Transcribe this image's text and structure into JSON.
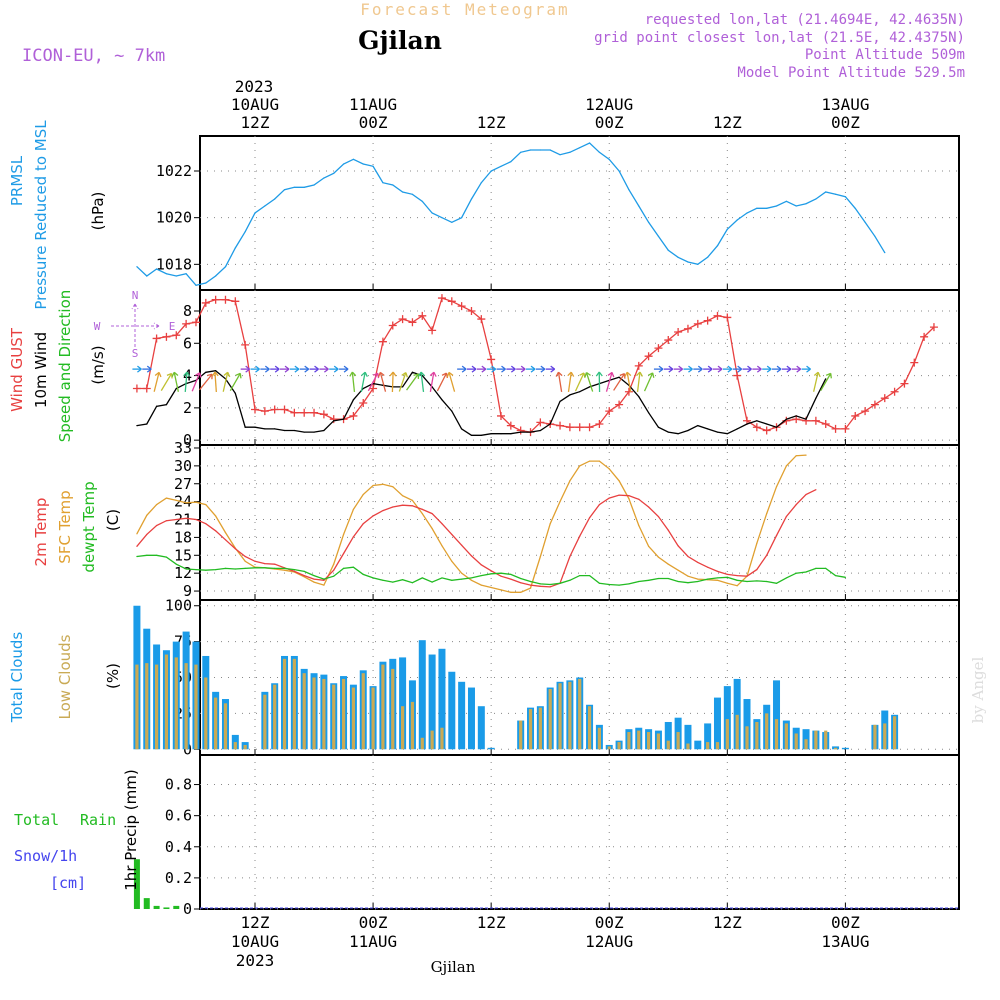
{
  "header": {
    "product": "Forecast Meteogram",
    "title": "Gjilan",
    "model": "ICON-EU, ~ 7km",
    "requested": "requested lon,lat (21.4694E, 42.4635N)",
    "grid_point": "grid point closest lon,lat (21.5E, 42.4375N)",
    "point_altitude": "Point Altitude 509m",
    "model_altitude": "Model Point Altitude 529.5m",
    "footer_location": "Gjilan",
    "watermark": "by Angel"
  },
  "time_axis": {
    "top_year": "2023",
    "ticks": [
      {
        "hour": 12,
        "l1": "10AUG",
        "l2": "12Z"
      },
      {
        "hour": 24,
        "l1": "11AUG",
        "l2": "00Z"
      },
      {
        "hour": 36,
        "l1": "",
        "l2": "12Z"
      },
      {
        "hour": 48,
        "l1": "12AUG",
        "l2": "00Z"
      },
      {
        "hour": 60,
        "l1": "",
        "l2": "12Z"
      },
      {
        "hour": 72,
        "l1": "13AUG",
        "l2": "00Z"
      }
    ],
    "bottom_ticks": [
      {
        "hour": 12,
        "l1": "12Z",
        "l2": "10AUG",
        "l3": "2023"
      },
      {
        "hour": 24,
        "l1": "00Z",
        "l2": "11AUG",
        "l3": ""
      },
      {
        "hour": 36,
        "l1": "12Z",
        "l2": "",
        "l3": ""
      },
      {
        "hour": 48,
        "l1": "00Z",
        "l2": "12AUG",
        "l3": ""
      },
      {
        "hour": 60,
        "l1": "12Z",
        "l2": "",
        "l3": ""
      },
      {
        "hour": 72,
        "l1": "00Z",
        "l2": "13AUG",
        "l3": ""
      }
    ]
  },
  "panel_labels": {
    "pressure": {
      "l1": "PRMSL",
      "l2": "Pressure Reduced to MSL",
      "unit": "(hPa)"
    },
    "wind": {
      "l1": "Wind GUST",
      "l2": "10m Wind",
      "l3": "Speed and Direction",
      "unit": "(m/s)"
    },
    "compass": {
      "n": "N",
      "s": "S",
      "w": "W",
      "e": "E"
    },
    "temp": {
      "l1": "2m Temp",
      "l2": "SFC Temp",
      "l3": "dewpt Temp",
      "unit": "(C)"
    },
    "clouds": {
      "l1": "Total Clouds",
      "l2": "Low Clouds",
      "unit": "(%)"
    },
    "precip": {
      "l1": "Total",
      "l2": "Rain",
      "l3": "Snow/1h",
      "l4": "[cm]",
      "unit": "1hr Precip (mm)"
    }
  },
  "colors": {
    "pressure": "#1e9be6",
    "gust": "#e84040",
    "wind": "#000000",
    "t2m": "#e84040",
    "sfc": "#e0a030",
    "dewpt": "#22bb22",
    "total_clouds": "#1a9be8",
    "low_clouds": "#c9aa55",
    "rain": "#22bb22",
    "label_purple": "#b060d8",
    "title_orange": "#f0c890",
    "snow_blue": "#4444ee"
  },
  "chart_data": [
    {
      "type": "line",
      "title": "PRMSL",
      "ylabel": "(hPa)",
      "yticks": [
        1018,
        1020,
        1022
      ],
      "ylim": [
        1016.9,
        1023.5
      ],
      "x_hours": [
        0,
        1,
        2,
        3,
        4,
        5,
        6,
        7,
        8,
        9,
        10,
        11,
        12,
        13,
        14,
        15,
        16,
        17,
        18,
        19,
        20,
        21,
        22,
        23,
        24,
        25,
        26,
        27,
        28,
        29,
        30,
        31,
        32,
        33,
        34,
        35,
        36,
        37,
        38,
        39,
        40,
        41,
        42,
        43,
        44,
        45,
        46,
        47,
        48,
        49,
        50,
        51,
        52,
        53,
        54,
        55,
        56,
        57,
        58,
        59,
        60,
        61,
        62,
        63,
        64,
        65,
        66,
        67,
        68,
        69,
        70,
        71,
        72,
        73,
        74,
        75,
        76,
        77,
        78,
        79,
        80,
        81
      ],
      "series": [
        {
          "name": "PRMSL",
          "values": [
            1017.9,
            1017.5,
            1017.8,
            1017.6,
            1017.5,
            1017.6,
            1017.1,
            1017.2,
            1017.5,
            1017.9,
            1018.7,
            1019.4,
            1020.2,
            1020.5,
            1020.8,
            1021.2,
            1021.3,
            1021.3,
            1021.4,
            1021.7,
            1021.9,
            1022.3,
            1022.5,
            1022.3,
            1022.2,
            1021.5,
            1021.4,
            1021.1,
            1021.0,
            1020.7,
            1020.2,
            1020.0,
            1019.8,
            1020.0,
            1020.8,
            1021.5,
            1022.0,
            1022.2,
            1022.4,
            1022.8,
            1022.9,
            1022.9,
            1022.9,
            1022.7,
            1022.8,
            1023.0,
            1023.2,
            1022.8,
            1022.5,
            1022.0,
            1021.2,
            1020.5,
            1019.8,
            1019.2,
            1018.6,
            1018.3,
            1018.1,
            1018.0,
            1018.3,
            1018.8,
            1019.5,
            1019.9,
            1020.2,
            1020.4,
            1020.4,
            1020.5,
            1020.7,
            1020.5,
            1020.6,
            1020.8,
            1021.1,
            1021.0,
            1020.9,
            1020.4,
            1019.8,
            1019.2,
            1018.5
          ]
        }
      ]
    },
    {
      "type": "line",
      "title": "Wind GUST / 10m Wind",
      "ylabel": "(m/s)",
      "yticks": [
        0,
        2,
        4,
        6,
        8
      ],
      "ylim": [
        -0.3,
        9.3
      ],
      "x_hours": [
        0,
        1,
        2,
        3,
        4,
        5,
        6,
        7,
        8,
        9,
        10,
        11,
        12,
        13,
        14,
        15,
        16,
        17,
        18,
        19,
        20,
        21,
        22,
        23,
        24,
        25,
        26,
        27,
        28,
        29,
        30,
        31,
        32,
        33,
        34,
        35,
        36,
        37,
        38,
        39,
        40,
        41,
        42,
        43,
        44,
        45,
        46,
        47,
        48,
        49,
        50,
        51,
        52,
        53,
        54,
        55,
        56,
        57,
        58,
        59,
        60,
        61,
        62,
        63,
        64,
        65,
        66,
        67,
        68,
        69,
        70,
        71,
        72,
        73,
        74,
        75,
        76,
        77,
        78,
        79,
        80,
        81
      ],
      "series": [
        {
          "name": "Wind GUST",
          "values": [
            3.2,
            3.2,
            6.3,
            6.4,
            6.5,
            7.2,
            7.3,
            8.5,
            8.7,
            8.7,
            8.6,
            5.9,
            1.9,
            1.8,
            1.9,
            1.9,
            1.7,
            1.7,
            1.7,
            1.6,
            1.3,
            1.3,
            1.5,
            2.3,
            3.2,
            6.1,
            7.1,
            7.5,
            7.3,
            7.7,
            6.8,
            8.8,
            8.6,
            8.3,
            8.0,
            7.5,
            5.0,
            1.5,
            0.9,
            0.6,
            0.5,
            1.1,
            1.0,
            0.9,
            0.8,
            0.8,
            0.8,
            1.0,
            1.8,
            2.2,
            3.0,
            4.6,
            5.2,
            5.7,
            6.2,
            6.7,
            6.9,
            7.2,
            7.4,
            7.7,
            7.6,
            4.0,
            1.2,
            0.8,
            0.6,
            0.8,
            1.2,
            1.3,
            1.2,
            1.2,
            1.0,
            0.7,
            0.7,
            1.5,
            1.8,
            2.2,
            2.6,
            3.0,
            3.5,
            4.8,
            6.4,
            7.0
          ]
        },
        {
          "name": "10m Wind",
          "values": [
            0.9,
            1.0,
            2.1,
            2.2,
            3.2,
            3.5,
            3.7,
            4.2,
            4.3,
            3.8,
            2.9,
            0.8,
            0.8,
            0.7,
            0.7,
            0.6,
            0.6,
            0.5,
            0.5,
            0.6,
            1.2,
            1.3,
            2.5,
            3.2,
            3.5,
            3.4,
            3.3,
            3.3,
            4.2,
            4.0,
            3.3,
            2.5,
            1.8,
            0.7,
            0.3,
            0.3,
            0.4,
            0.4,
            0.4,
            0.5,
            0.5,
            0.6,
            1.0,
            2.4,
            2.8,
            3.0,
            3.3,
            3.5,
            3.7,
            3.9,
            3.4,
            2.7,
            1.7,
            0.8,
            0.5,
            0.4,
            0.6,
            0.9,
            0.7,
            0.5,
            0.4,
            0.7,
            1.0,
            1.2,
            1.0,
            0.8,
            1.3,
            1.5,
            1.3,
            2.6,
            3.8
          ]
        }
      ]
    },
    {
      "type": "line",
      "title": "2m Temp / SFC Temp / dewpt Temp",
      "ylabel": "(C)",
      "yticks": [
        9,
        12,
        15,
        18,
        21,
        24,
        27,
        30,
        33
      ],
      "ylim": [
        7.5,
        33.5
      ],
      "x_hours": [
        0,
        1,
        2,
        3,
        4,
        5,
        6,
        7,
        8,
        9,
        10,
        11,
        12,
        13,
        14,
        15,
        16,
        17,
        18,
        19,
        20,
        21,
        22,
        23,
        24,
        25,
        26,
        27,
        28,
        29,
        30,
        31,
        32,
        33,
        34,
        35,
        36,
        37,
        38,
        39,
        40,
        41,
        42,
        43,
        44,
        45,
        46,
        47,
        48,
        49,
        50,
        51,
        52,
        53,
        54,
        55,
        56,
        57,
        58,
        59,
        60,
        61,
        62,
        63,
        64,
        65,
        66,
        67,
        68,
        69,
        70,
        71,
        72,
        73,
        74,
        75,
        76,
        77,
        78,
        79,
        80,
        81
      ],
      "series": [
        {
          "name": "2m Temp",
          "values": [
            16.5,
            18.5,
            20.0,
            20.8,
            21.0,
            21.2,
            21.0,
            20.3,
            19.1,
            17.6,
            16.1,
            14.8,
            14.0,
            13.6,
            13.5,
            12.9,
            12.3,
            11.6,
            11.0,
            10.8,
            12.5,
            15.3,
            18.1,
            20.3,
            21.6,
            22.5,
            23.1,
            23.4,
            23.3,
            22.7,
            22.0,
            20.3,
            18.5,
            16.7,
            14.9,
            13.4,
            12.4,
            11.5,
            11.0,
            10.4,
            10.0,
            9.8,
            9.7,
            10.3,
            14.8,
            18.2,
            21.3,
            23.5,
            24.6,
            25.1,
            25.0,
            24.4,
            23.1,
            21.5,
            19.2,
            16.6,
            14.8,
            13.8,
            13.0,
            12.3,
            11.8,
            11.6,
            11.5,
            12.6,
            15.0,
            18.3,
            21.5,
            23.5,
            25.2,
            26.0
          ]
        },
        {
          "name": "SFC Temp",
          "values": [
            18.6,
            21.7,
            23.5,
            24.6,
            24.2,
            23.8,
            23.9,
            23.5,
            21.6,
            18.8,
            16.2,
            14.0,
            13.0,
            12.9,
            12.7,
            12.5,
            12.2,
            11.4,
            10.5,
            10.0,
            13.5,
            18.5,
            22.7,
            25.2,
            26.7,
            26.9,
            26.5,
            25.0,
            24.2,
            22.0,
            19.5,
            16.6,
            14.0,
            12.0,
            10.8,
            10.0,
            9.6,
            9.2,
            8.8,
            8.8,
            9.5,
            14.8,
            20.3,
            24.0,
            27.5,
            30.0,
            30.8,
            30.8,
            29.5,
            27.5,
            24.5,
            20.0,
            16.5,
            14.7,
            13.5,
            12.5,
            11.5,
            11.0,
            10.9,
            10.8,
            10.3,
            9.9,
            11.5,
            17.0,
            22.0,
            26.5,
            30.0,
            31.7,
            31.8
          ]
        },
        {
          "name": "dewpt Temp",
          "values": [
            14.8,
            15.0,
            15.0,
            14.7,
            13.5,
            12.7,
            12.6,
            12.5,
            12.6,
            12.8,
            12.7,
            12.8,
            12.9,
            12.9,
            12.8,
            12.8,
            12.6,
            12.3,
            11.6,
            11.0,
            11.5,
            12.8,
            13.0,
            11.8,
            11.2,
            10.8,
            10.5,
            10.9,
            10.4,
            11.2,
            10.5,
            11.2,
            10.8,
            11.0,
            11.2,
            11.6,
            11.9,
            12.0,
            11.8,
            11.1,
            10.6,
            10.2,
            10.1,
            10.3,
            10.8,
            11.6,
            11.6,
            10.3,
            10.1,
            10.0,
            10.2,
            10.6,
            10.8,
            11.1,
            11.1,
            10.6,
            10.4,
            10.6,
            11.0,
            11.2,
            11.3,
            10.8,
            10.6,
            10.7,
            10.6,
            10.3,
            11.2,
            12.0,
            12.2,
            12.8,
            12.8,
            11.6,
            11.3
          ]
        }
      ]
    },
    {
      "type": "bar",
      "title": "Total Clouds / Low Clouds",
      "ylabel": "(%)",
      "yticks": [
        0,
        25,
        50,
        75,
        100
      ],
      "ylim": [
        -4,
        104
      ],
      "x_hours": [
        0,
        1,
        2,
        3,
        4,
        5,
        6,
        7,
        8,
        9,
        10,
        11,
        12,
        13,
        14,
        15,
        16,
        17,
        18,
        19,
        20,
        21,
        22,
        23,
        24,
        25,
        26,
        27,
        28,
        29,
        30,
        31,
        32,
        33,
        34,
        35,
        36,
        37,
        38,
        39,
        40,
        41,
        42,
        43,
        44,
        45,
        46,
        47,
        48,
        49,
        50,
        51,
        52,
        53,
        54,
        55,
        56,
        57,
        58,
        59,
        60,
        61,
        62,
        63,
        64,
        65,
        66,
        67,
        68,
        69,
        70,
        71,
        72,
        73,
        74,
        75,
        76,
        77,
        78,
        79,
        80
      ],
      "series": [
        {
          "name": "Total Clouds",
          "values": [
            100,
            84,
            73,
            69,
            75,
            82,
            75,
            65,
            40,
            35,
            10,
            5,
            0,
            40,
            46,
            65,
            65,
            56,
            53,
            52,
            46,
            51,
            45,
            55,
            44,
            61,
            63,
            64,
            48,
            76,
            66,
            70,
            54,
            47,
            43,
            30,
            1,
            0,
            0,
            20,
            29,
            30,
            43,
            47,
            48,
            50,
            31,
            17,
            3,
            6,
            14,
            15,
            14,
            13,
            19,
            22,
            17,
            6,
            18,
            36,
            44,
            49,
            35,
            21,
            31,
            48,
            20,
            15,
            14,
            13,
            12,
            2,
            1,
            0,
            0,
            17,
            27,
            24
          ]
        },
        {
          "name": "Low Clouds",
          "values": [
            59,
            60,
            59,
            66,
            64,
            60,
            59,
            50,
            36,
            32,
            5,
            3,
            0,
            38,
            45,
            63,
            63,
            53,
            50,
            49,
            45,
            49,
            43,
            53,
            43,
            59,
            56,
            30,
            33,
            8,
            13,
            15,
            0,
            0,
            0,
            0,
            0,
            0,
            0,
            20,
            28,
            29,
            42,
            46,
            47,
            49,
            30,
            15,
            2,
            5,
            12,
            13,
            12,
            11,
            6,
            12,
            4,
            0,
            5,
            5,
            21,
            24,
            16,
            19,
            25,
            21,
            18,
            11,
            7,
            13,
            13,
            1,
            0,
            0,
            0,
            17,
            18,
            23
          ]
        }
      ]
    },
    {
      "type": "bar",
      "title": "1hr Precip",
      "ylabel": "1hr Precip (mm)",
      "yticks": [
        0,
        0.2,
        0.4,
        0.6,
        0.8
      ],
      "ylim": [
        0,
        0.99
      ],
      "x_hours": [
        0,
        1,
        2,
        3,
        4,
        5,
        6,
        7,
        8,
        9,
        10
      ],
      "series": [
        {
          "name": "Total",
          "values": [
            0.32,
            0.07,
            0.02,
            0.01,
            0.02,
            0,
            0,
            0,
            0,
            0,
            0
          ]
        },
        {
          "name": "Snow/1h",
          "values": [
            0,
            0,
            0,
            0,
            0,
            0,
            0,
            0,
            0,
            0,
            0
          ]
        }
      ]
    }
  ]
}
